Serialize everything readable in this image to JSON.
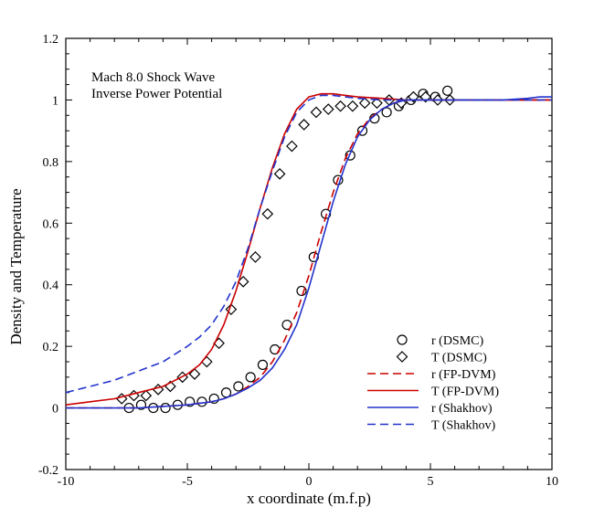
{
  "chart_data": {
    "type": "line",
    "xlabel": "x coordinate (m.f.p)",
    "ylabel": "Density and Temperature",
    "xlim": [
      -10,
      10
    ],
    "ylim": [
      -0.2,
      1.2
    ],
    "x_ticks": [
      -10,
      -5,
      0,
      5,
      10
    ],
    "x_tick_labels": [
      "-10",
      "-5",
      "0",
      "5",
      "10"
    ],
    "y_ticks": [
      -0.2,
      0,
      0.2,
      0.4,
      0.6,
      0.8,
      1,
      1.2
    ],
    "y_tick_labels": [
      "-0.2",
      "0",
      "0.2",
      "0.4",
      "0.6",
      "0.8",
      "1",
      "1.2"
    ],
    "annotation_lines": [
      "Mach 8.0 Shock Wave",
      "Inverse Power Potential"
    ],
    "legend_position": "lower-right",
    "series": [
      {
        "name": "r (DSMC)",
        "kind": "marker",
        "marker": "circle",
        "color": "#000000",
        "x": [
          -7.4,
          -6.9,
          -6.4,
          -5.9,
          -5.4,
          -4.9,
          -4.4,
          -3.9,
          -3.4,
          -2.9,
          -2.4,
          -1.9,
          -1.4,
          -0.9,
          -0.3,
          0.2,
          0.7,
          1.2,
          1.7,
          2.2,
          2.7,
          3.2,
          3.7,
          4.2,
          4.7,
          5.2,
          5.7
        ],
        "y": [
          0.0,
          0.01,
          0.0,
          0.0,
          0.01,
          0.02,
          0.02,
          0.03,
          0.05,
          0.07,
          0.1,
          0.14,
          0.19,
          0.27,
          0.38,
          0.49,
          0.63,
          0.74,
          0.82,
          0.9,
          0.94,
          0.96,
          0.98,
          1.0,
          1.02,
          1.01,
          1.03
        ]
      },
      {
        "name": "T (DSMC)",
        "kind": "marker",
        "marker": "diamond",
        "color": "#000000",
        "x": [
          -7.7,
          -7.2,
          -6.7,
          -6.2,
          -5.7,
          -5.2,
          -4.7,
          -4.2,
          -3.7,
          -3.2,
          -2.7,
          -2.2,
          -1.7,
          -1.2,
          -0.7,
          -0.2,
          0.3,
          0.8,
          1.3,
          1.8,
          2.3,
          2.8,
          3.3,
          3.8,
          4.3,
          4.8,
          5.3,
          5.8
        ],
        "y": [
          0.03,
          0.04,
          0.04,
          0.06,
          0.07,
          0.1,
          0.11,
          0.15,
          0.21,
          0.32,
          0.41,
          0.49,
          0.63,
          0.76,
          0.85,
          0.92,
          0.96,
          0.97,
          0.98,
          0.98,
          0.99,
          0.99,
          1.0,
          0.99,
          1.01,
          1.01,
          1.0,
          1.0
        ]
      },
      {
        "name": "r (FP-DVM)",
        "kind": "line",
        "dash": "dashed",
        "color": "#cc0000",
        "x": [
          -10,
          -9,
          -8,
          -7,
          -6,
          -5,
          -4,
          -3.5,
          -3,
          -2.5,
          -2,
          -1.5,
          -1,
          -0.5,
          0,
          0.5,
          1,
          1.5,
          2,
          2.5,
          3,
          3.5,
          4,
          5,
          6,
          7,
          8,
          9,
          10
        ],
        "y": [
          0.0,
          0.0,
          0.0,
          0.0,
          0.005,
          0.01,
          0.02,
          0.03,
          0.045,
          0.07,
          0.1,
          0.15,
          0.22,
          0.31,
          0.43,
          0.57,
          0.7,
          0.81,
          0.89,
          0.94,
          0.97,
          0.99,
          1.0,
          1.0,
          1.0,
          1.0,
          1.0,
          1.0,
          1.0
        ]
      },
      {
        "name": "T (FP-DVM)",
        "kind": "line",
        "dash": "solid",
        "color": "#cc0000",
        "x": [
          -10,
          -9,
          -8,
          -7,
          -6,
          -5,
          -4.5,
          -4,
          -3.5,
          -3,
          -2.5,
          -2,
          -1.5,
          -1,
          -0.5,
          0,
          0.5,
          1,
          1.5,
          2,
          3,
          4,
          5,
          6,
          7,
          8,
          9,
          10
        ],
        "y": [
          0.01,
          0.02,
          0.03,
          0.05,
          0.07,
          0.11,
          0.14,
          0.19,
          0.27,
          0.38,
          0.51,
          0.65,
          0.78,
          0.89,
          0.97,
          1.01,
          1.02,
          1.02,
          1.015,
          1.01,
          1.005,
          1.0,
          1.0,
          1.0,
          1.0,
          1.0,
          1.0,
          1.0
        ]
      },
      {
        "name": "r (Shakhov)",
        "kind": "line",
        "dash": "solid",
        "color": "#2233cc",
        "x": [
          -10,
          -9,
          -8,
          -7,
          -6,
          -5,
          -4,
          -3.5,
          -3,
          -2.5,
          -2,
          -1.5,
          -1,
          -0.5,
          0,
          0.5,
          1,
          1.5,
          2,
          2.5,
          3,
          3.5,
          4,
          5,
          6,
          7,
          8,
          9,
          9.5,
          10
        ],
        "y": [
          0.0,
          0.0,
          0.0,
          0.0,
          0.005,
          0.01,
          0.02,
          0.03,
          0.045,
          0.065,
          0.09,
          0.13,
          0.19,
          0.27,
          0.39,
          0.53,
          0.67,
          0.79,
          0.88,
          0.935,
          0.97,
          0.99,
          1.0,
          1.0,
          1.0,
          1.0,
          1.0,
          1.005,
          1.01,
          1.01
        ]
      },
      {
        "name": "T (Shakhov)",
        "kind": "line",
        "dash": "dashed",
        "color": "#2233cc",
        "x": [
          -10,
          -9,
          -8,
          -7,
          -6,
          -5,
          -4.5,
          -4,
          -3.5,
          -3,
          -2.5,
          -2,
          -1.5,
          -1,
          -0.5,
          0,
          0.5,
          1,
          1.5,
          2,
          3,
          4,
          5,
          6,
          7,
          8,
          9,
          10
        ],
        "y": [
          0.05,
          0.07,
          0.09,
          0.12,
          0.15,
          0.2,
          0.23,
          0.27,
          0.33,
          0.41,
          0.52,
          0.65,
          0.77,
          0.88,
          0.96,
          1.0,
          1.015,
          1.015,
          1.01,
          1.005,
          1.0,
          1.0,
          1.0,
          1.0,
          1.0,
          1.0,
          1.0,
          1.0
        ]
      }
    ]
  }
}
